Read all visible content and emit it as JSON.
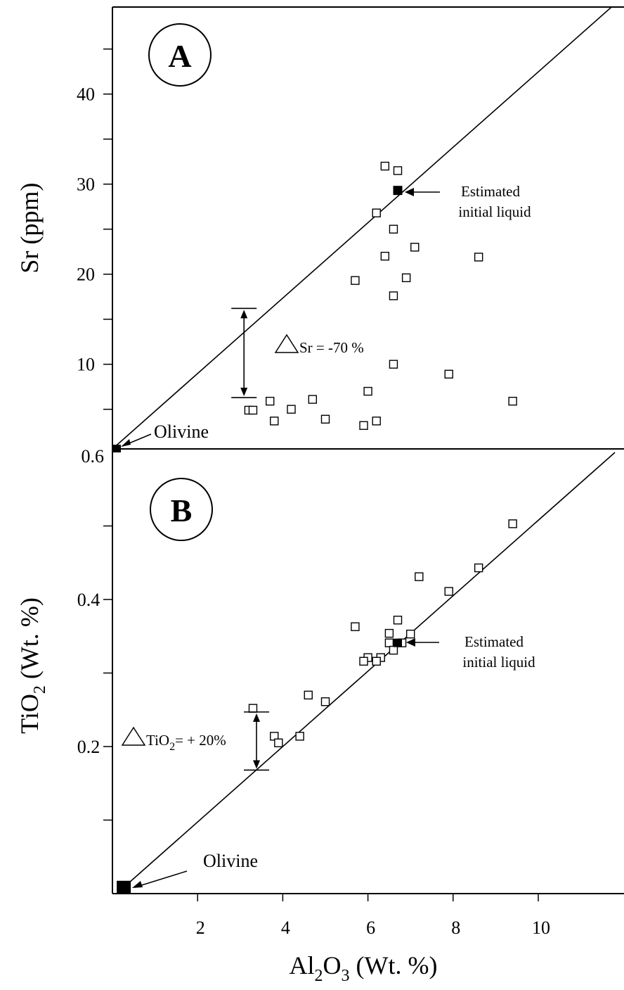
{
  "chart_data": [
    {
      "panel": "A",
      "type": "scatter",
      "ylabel": "Sr (ppm)",
      "ylabel_main": "Sr",
      "ylabel_unit": "(ppm)",
      "xlim": [
        0,
        12
      ],
      "ylim": [
        0.6,
        50
      ],
      "y_ticks": [
        10,
        20,
        30,
        40
      ],
      "y_tick_labels": [
        "10",
        "20",
        "30",
        "40"
      ],
      "y_bottom_label": "0.6",
      "points": [
        {
          "x": 6.4,
          "y": 32.0
        },
        {
          "x": 6.7,
          "y": 31.5
        },
        {
          "x": 6.2,
          "y": 26.8
        },
        {
          "x": 6.6,
          "y": 25.0
        },
        {
          "x": 6.4,
          "y": 22.0
        },
        {
          "x": 7.1,
          "y": 23.0
        },
        {
          "x": 8.6,
          "y": 21.9
        },
        {
          "x": 5.7,
          "y": 19.3
        },
        {
          "x": 6.9,
          "y": 19.6
        },
        {
          "x": 6.6,
          "y": 17.6
        },
        {
          "x": 6.6,
          "y": 10.0
        },
        {
          "x": 7.9,
          "y": 8.9
        },
        {
          "x": 6.0,
          "y": 7.0
        },
        {
          "x": 9.4,
          "y": 5.9
        },
        {
          "x": 3.7,
          "y": 5.9
        },
        {
          "x": 4.7,
          "y": 6.1
        },
        {
          "x": 4.2,
          "y": 5.0
        },
        {
          "x": 3.2,
          "y": 4.9
        },
        {
          "x": 3.3,
          "y": 4.9
        },
        {
          "x": 3.8,
          "y": 3.7
        },
        {
          "x": 5.0,
          "y": 3.9
        },
        {
          "x": 5.9,
          "y": 3.2
        },
        {
          "x": 6.2,
          "y": 3.7
        }
      ],
      "trend_line": {
        "x1": 0,
        "y1": 0.6,
        "x2": 11.8,
        "y2": 50
      },
      "olivine": {
        "x": 0,
        "y": 0.6,
        "label": "Olivine"
      },
      "initial_liquid": {
        "x": 6.7,
        "y": 29.3,
        "label_line1": "Estimated",
        "label_line2": "initial liquid"
      },
      "delta": {
        "x": 3.7,
        "y_top": 16.2,
        "y_bottom": 6.3,
        "text": "Sr = -70 %"
      }
    },
    {
      "panel": "B",
      "type": "scatter",
      "ylabel": "TiO2 (Wt. %)",
      "ylabel_main": "TiO",
      "ylabel_sub": "2",
      "ylabel_unit": "(Wt. %)",
      "xlabel": "Al2O3 (Wt. %)",
      "xlabel_a": "Al",
      "xlabel_sub1": "2",
      "xlabel_b": "O",
      "xlabel_sub2": "3",
      "xlabel_unit": "(Wt. %)",
      "xlim": [
        0,
        12
      ],
      "ylim": [
        0,
        0.6
      ],
      "x_ticks": [
        2,
        4,
        6,
        8,
        10
      ],
      "x_tick_labels": [
        "2",
        "4",
        "6",
        "8",
        "10"
      ],
      "y_ticks": [
        0.2,
        0.4
      ],
      "y_tick_labels": [
        "0.2",
        "0.4"
      ],
      "points": [
        {
          "x": 9.4,
          "y": 0.503
        },
        {
          "x": 8.6,
          "y": 0.443
        },
        {
          "x": 7.9,
          "y": 0.411
        },
        {
          "x": 7.2,
          "y": 0.431
        },
        {
          "x": 5.7,
          "y": 0.363
        },
        {
          "x": 6.7,
          "y": 0.372
        },
        {
          "x": 6.5,
          "y": 0.354
        },
        {
          "x": 7.0,
          "y": 0.353
        },
        {
          "x": 6.5,
          "y": 0.341
        },
        {
          "x": 6.8,
          "y": 0.341
        },
        {
          "x": 6.6,
          "y": 0.331
        },
        {
          "x": 6.0,
          "y": 0.321
        },
        {
          "x": 6.3,
          "y": 0.321
        },
        {
          "x": 5.9,
          "y": 0.316
        },
        {
          "x": 6.2,
          "y": 0.316
        },
        {
          "x": 4.6,
          "y": 0.27
        },
        {
          "x": 5.0,
          "y": 0.261
        },
        {
          "x": 3.3,
          "y": 0.252
        },
        {
          "x": 3.8,
          "y": 0.214
        },
        {
          "x": 3.9,
          "y": 0.205
        },
        {
          "x": 4.4,
          "y": 0.214
        }
      ],
      "trend_line": {
        "x1": 0,
        "y1": 0.005,
        "x2": 11.8,
        "y2": 0.6
      },
      "olivine": {
        "x": 0.2,
        "y": 0.005,
        "label": "Olivine"
      },
      "initial_liquid": {
        "x": 6.7,
        "y": 0.341,
        "label_line1": "Estimated",
        "label_line2": "initial liquid"
      },
      "delta": {
        "x": 3.4,
        "y_top": 0.247,
        "y_bottom": 0.168,
        "text_a": "TiO",
        "text_sub": "2",
        "text_b": "= + 20%"
      }
    }
  ]
}
